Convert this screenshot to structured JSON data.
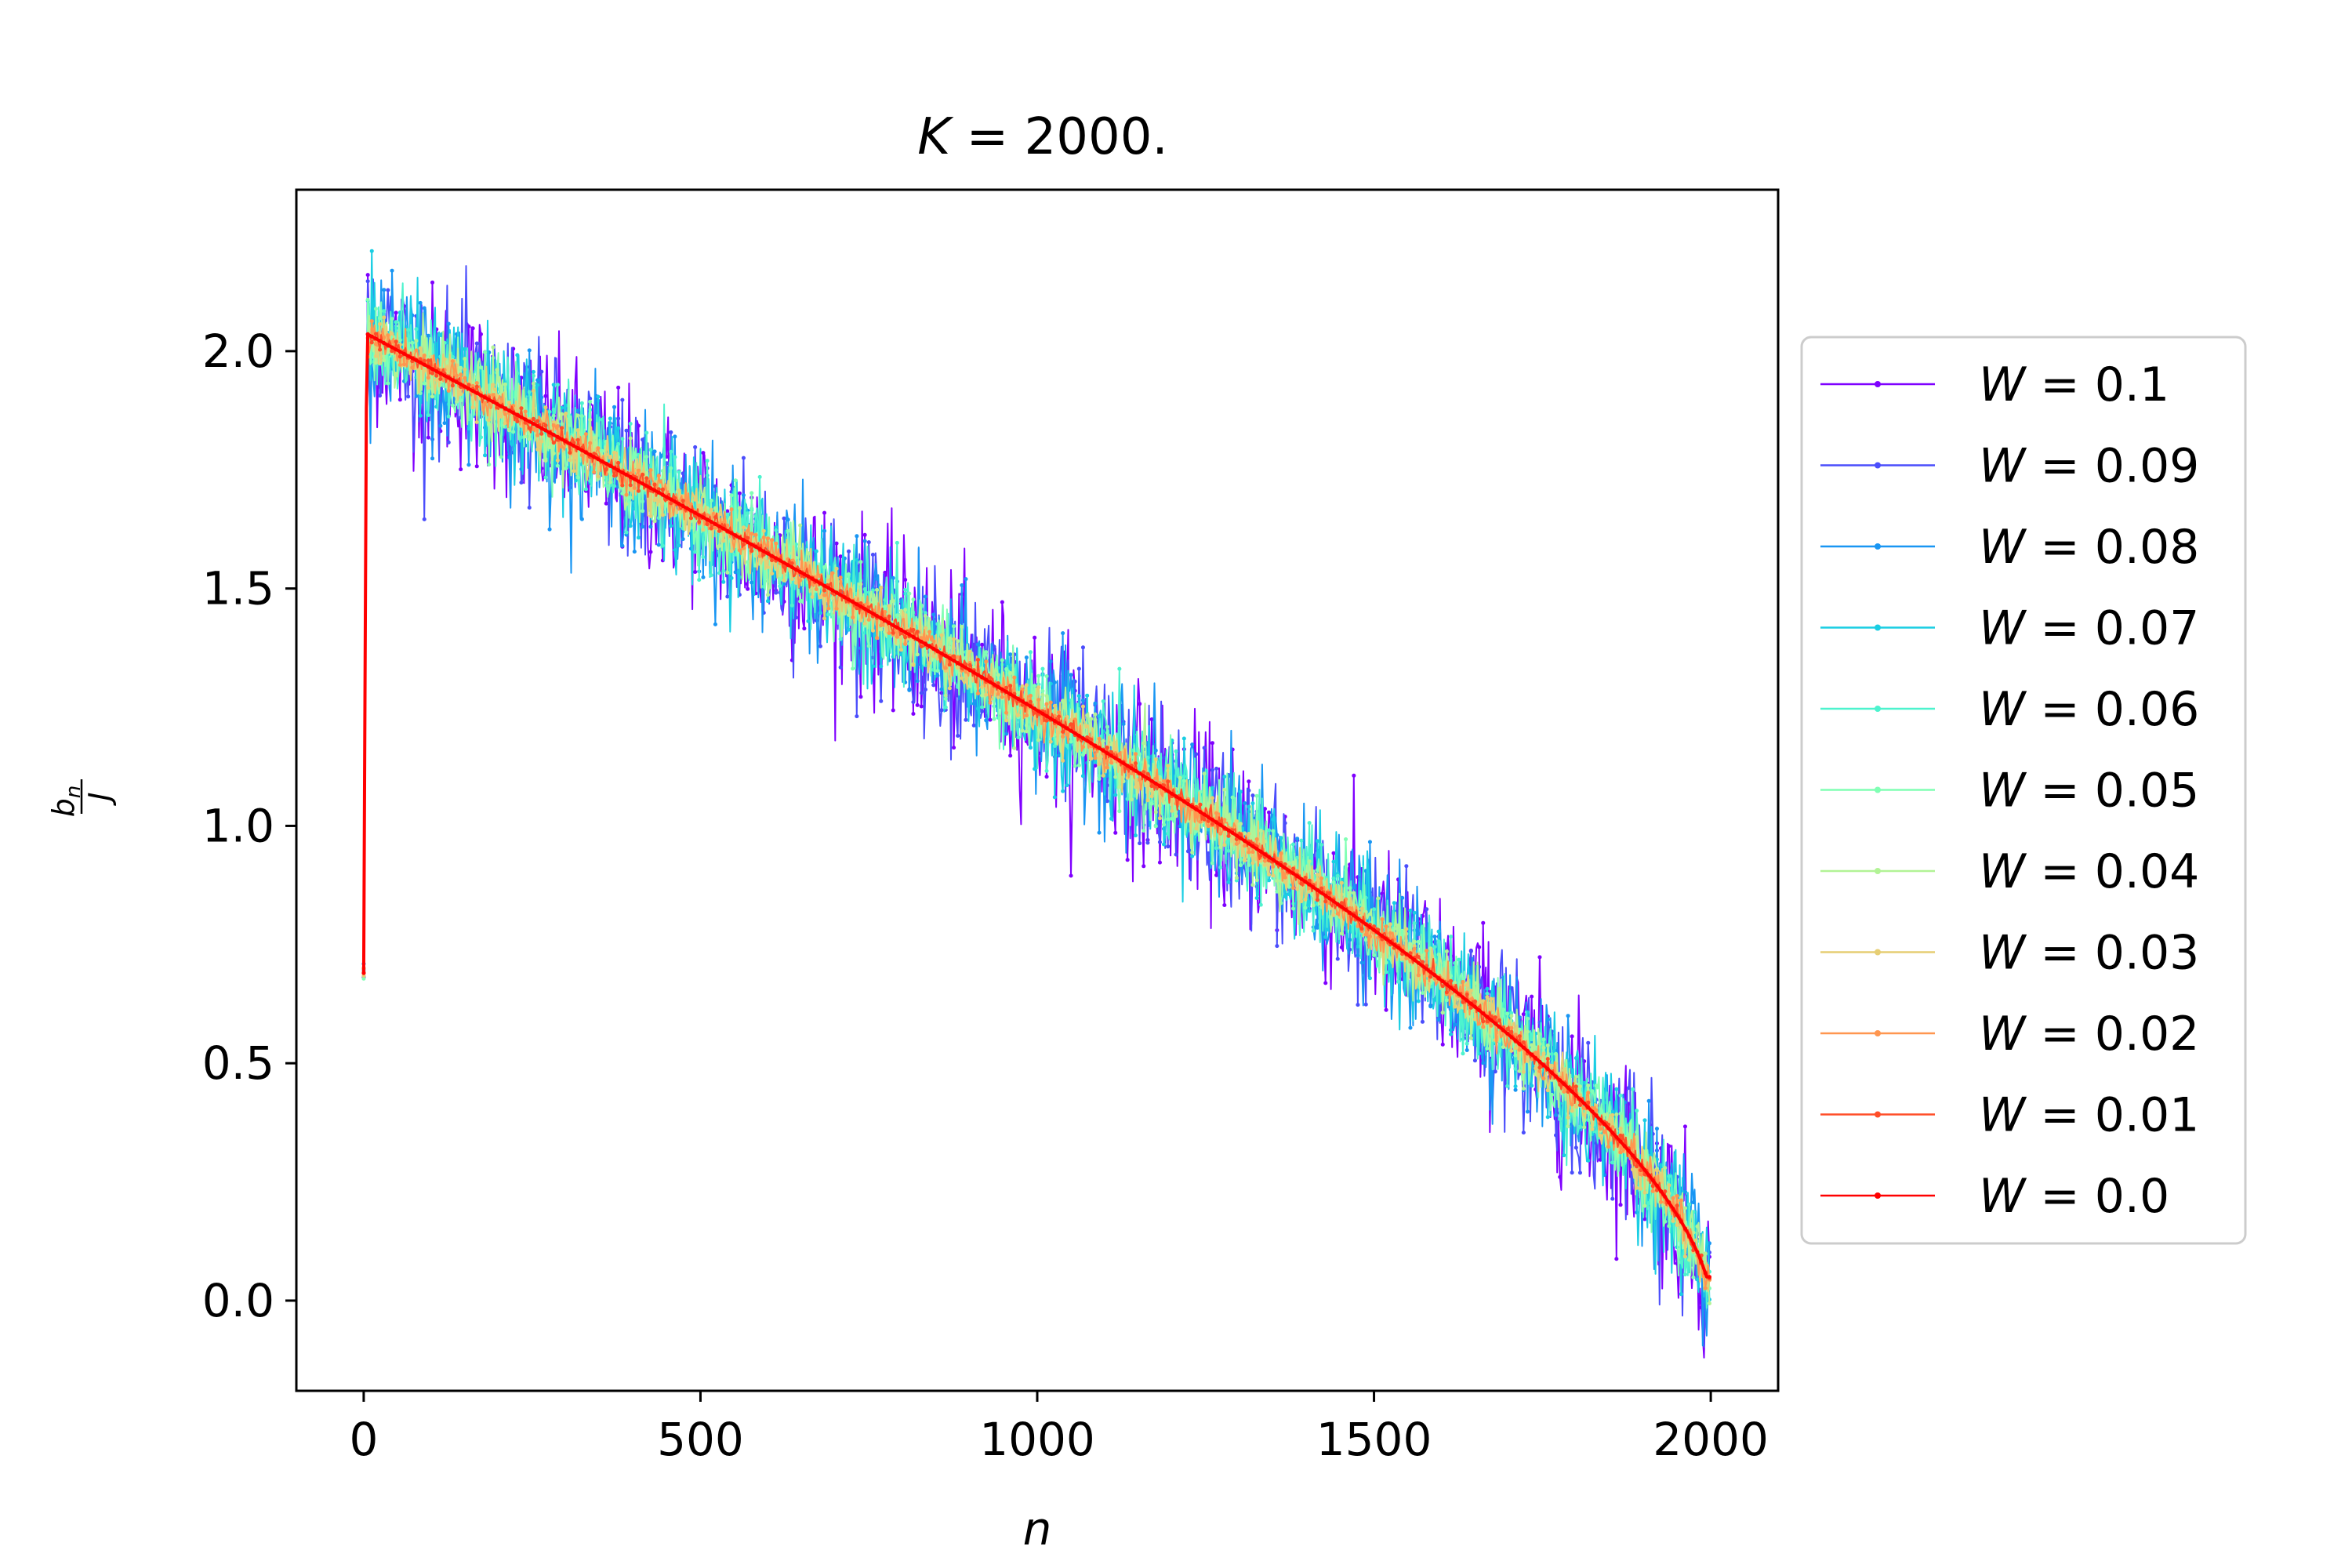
{
  "chart_data": {
    "type": "line",
    "title": {
      "var": "K",
      "eq": " = ",
      "value": "2000."
    },
    "xlabel": "n",
    "ylabel": {
      "num": "b",
      "sub": "n",
      "den": "J"
    },
    "xlim": [
      -100,
      2100
    ],
    "ylim": [
      -0.19,
      2.34
    ],
    "xticks": [
      0,
      500,
      1000,
      1500,
      2000
    ],
    "xtick_labels": [
      "0",
      "500",
      "1000",
      "1500",
      "2000"
    ],
    "yticks": [
      0.0,
      0.5,
      1.0,
      1.5,
      2.0
    ],
    "ytick_labels": [
      "0.0",
      "0.5",
      "1.0",
      "1.5",
      "2.0"
    ],
    "grid": false,
    "legend_position": "outside-right",
    "curve": {
      "description": "mean hopping b_n/J = 2*sqrt(1-(n/K)^2-ish) falling from 2.0 at n=0 to ~0.05 at n=2000",
      "n_points": 2000,
      "start_values": [
        0.69,
        1.0,
        1.3,
        1.6,
        1.88
      ],
      "peak": 2.0
    },
    "series": [
      {
        "name": "W = 0.1",
        "W": 0.1,
        "label_var": "W",
        "label_eq": " = ",
        "label_val": "0.1",
        "color": "#7f00ff"
      },
      {
        "name": "W = 0.09",
        "W": 0.09,
        "label_var": "W",
        "label_eq": " = ",
        "label_val": "0.09",
        "color": "#4b4efc"
      },
      {
        "name": "W = 0.08",
        "W": 0.08,
        "label_var": "W",
        "label_eq": " = ",
        "label_val": "0.08",
        "color": "#1996f3"
      },
      {
        "name": "W = 0.07",
        "W": 0.07,
        "label_var": "W",
        "label_eq": " = ",
        "label_val": "0.07",
        "color": "#1acee3"
      },
      {
        "name": "W = 0.06",
        "W": 0.06,
        "label_var": "W",
        "label_eq": " = ",
        "label_val": "0.06",
        "color": "#4df3ce"
      },
      {
        "name": "W = 0.05",
        "W": 0.05,
        "label_var": "W",
        "label_eq": " = ",
        "label_val": "0.05",
        "color": "#80ffb4"
      },
      {
        "name": "W = 0.04",
        "W": 0.04,
        "label_var": "W",
        "label_eq": " = ",
        "label_val": "0.04",
        "color": "#b2f396"
      },
      {
        "name": "W = 0.03",
        "W": 0.03,
        "label_var": "W",
        "label_eq": " = ",
        "label_val": "0.03",
        "color": "#e6ce74"
      },
      {
        "name": "W = 0.02",
        "W": 0.02,
        "label_var": "W",
        "label_eq": " = ",
        "label_val": "0.02",
        "color": "#ff964f"
      },
      {
        "name": "W = 0.01",
        "W": 0.01,
        "label_var": "W",
        "label_eq": " = ",
        "label_val": "0.01",
        "color": "#ff4e28"
      },
      {
        "name": "W = 0.0",
        "W": 0.0,
        "label_var": "W",
        "label_eq": " = ",
        "label_val": "0.0",
        "color": "#ff0000"
      }
    ]
  }
}
